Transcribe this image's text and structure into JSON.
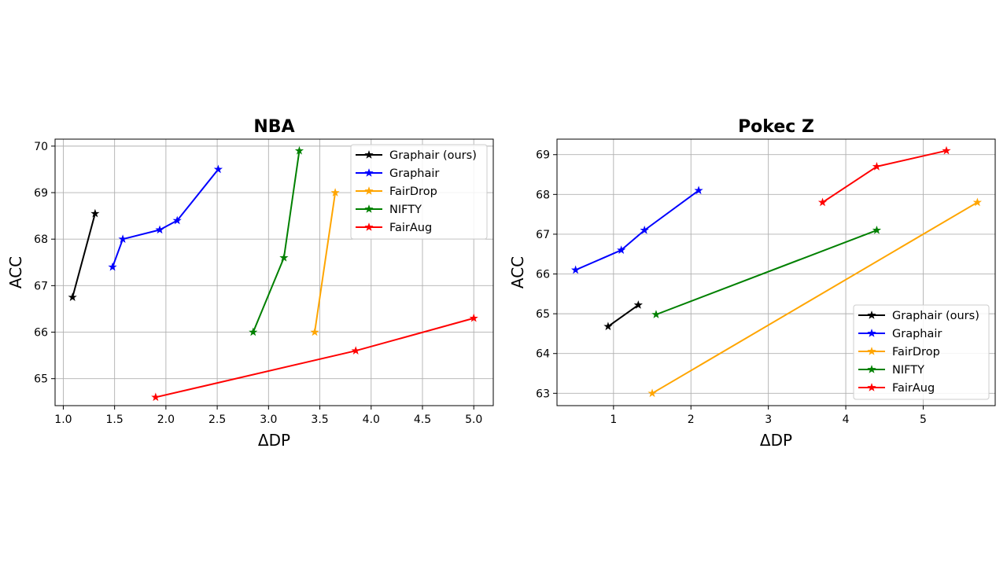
{
  "chart_data": [
    {
      "type": "line",
      "title": "NBA",
      "xlabel": "ΔDP",
      "ylabel": "ACC",
      "xlim": [
        0.92,
        5.19
      ],
      "ylim": [
        64.42,
        70.15
      ],
      "xticks": [
        1.0,
        1.5,
        2.0,
        2.5,
        3.0,
        3.5,
        4.0,
        4.5,
        5.0
      ],
      "xtick_labels": [
        "1.0",
        "1.5",
        "2.0",
        "2.5",
        "3.0",
        "3.5",
        "4.0",
        "4.5",
        "5.0"
      ],
      "yticks": [
        65,
        66,
        67,
        68,
        69,
        70
      ],
      "ytick_labels": [
        "65",
        "66",
        "67",
        "68",
        "69",
        "70"
      ],
      "grid": true,
      "legend_position": "top-right",
      "series": [
        {
          "name": "Graphair (ours)",
          "color": "#000000",
          "x": [
            1.09,
            1.31
          ],
          "y": [
            66.75,
            68.55
          ]
        },
        {
          "name": "Graphair",
          "color": "#0000ff",
          "x": [
            1.48,
            1.58,
            1.94,
            2.11,
            2.51
          ],
          "y": [
            67.4,
            68.0,
            68.2,
            68.4,
            69.5
          ]
        },
        {
          "name": "FairDrop",
          "color": "#ffa500",
          "x": [
            3.45,
            3.65
          ],
          "y": [
            66.0,
            69.0
          ]
        },
        {
          "name": "NIFTY",
          "color": "#008000",
          "x": [
            2.85,
            3.15,
            3.3
          ],
          "y": [
            66.0,
            67.6,
            69.9
          ]
        },
        {
          "name": "FairAug",
          "color": "#ff0000",
          "x": [
            1.9,
            3.85,
            5.0
          ],
          "y": [
            64.6,
            65.6,
            66.3
          ]
        }
      ]
    },
    {
      "type": "line",
      "title": "Pokec Z",
      "xlabel": "ΔDP",
      "ylabel": "ACC",
      "xlim": [
        0.27,
        5.93
      ],
      "ylim": [
        62.69,
        69.39
      ],
      "xticks": [
        1,
        2,
        3,
        4,
        5
      ],
      "xtick_labels": [
        "1",
        "2",
        "3",
        "4",
        "5"
      ],
      "yticks": [
        63,
        64,
        65,
        66,
        67,
        68,
        69
      ],
      "ytick_labels": [
        "63",
        "64",
        "65",
        "66",
        "67",
        "68",
        "69"
      ],
      "grid": true,
      "legend_position": "bottom-right",
      "series": [
        {
          "name": "Graphair (ours)",
          "color": "#000000",
          "x": [
            0.93,
            1.32
          ],
          "y": [
            64.68,
            65.22
          ]
        },
        {
          "name": "Graphair",
          "color": "#0000ff",
          "x": [
            0.51,
            1.1,
            1.4,
            2.1
          ],
          "y": [
            66.1,
            66.6,
            67.1,
            68.1
          ]
        },
        {
          "name": "FairDrop",
          "color": "#ffa500",
          "x": [
            1.5,
            5.7
          ],
          "y": [
            63.0,
            67.8
          ]
        },
        {
          "name": "NIFTY",
          "color": "#008000",
          "x": [
            1.55,
            4.4
          ],
          "y": [
            64.98,
            67.1
          ]
        },
        {
          "name": "FairAug",
          "color": "#ff0000",
          "x": [
            3.7,
            4.4,
            5.3
          ],
          "y": [
            67.8,
            68.7,
            69.1
          ]
        }
      ]
    }
  ]
}
